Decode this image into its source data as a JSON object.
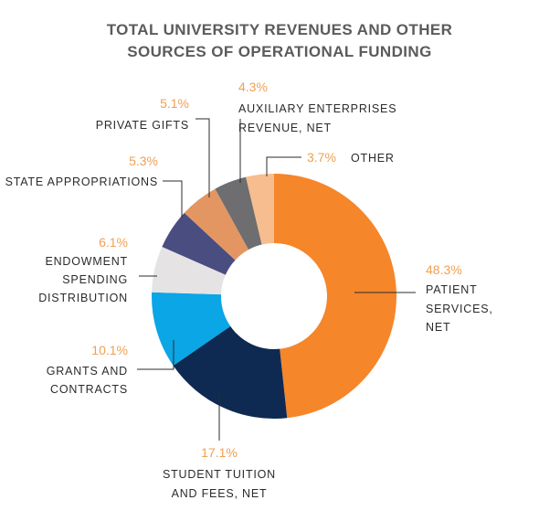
{
  "colors": {
    "percent": "#f0a052",
    "label": "#2b2b2b",
    "title": "#5b5b5b",
    "leader": "#2b2b2b"
  },
  "chart_data": {
    "type": "pie",
    "style": "donut",
    "title": [
      "TOTAL UNIVERSITY REVENUES AND OTHER",
      "SOURCES OF OPERATIONAL FUNDING"
    ],
    "slices": [
      {
        "label": [
          "PATIENT",
          "SERVICES,",
          "NET"
        ],
        "value": 48.3,
        "display": "48.3%",
        "color": "#f5862a"
      },
      {
        "label": [
          "STUDENT TUITION",
          "AND FEES, NET"
        ],
        "value": 17.1,
        "display": "17.1%",
        "color": "#0e2a52"
      },
      {
        "label": [
          "GRANTS AND",
          "CONTRACTS"
        ],
        "value": 10.1,
        "display": "10.1%",
        "color": "#0aa6e6"
      },
      {
        "label": [
          "ENDOWMENT",
          "SPENDING",
          "DISTRIBUTION"
        ],
        "value": 6.1,
        "display": "6.1%",
        "color": "#e6e3e4"
      },
      {
        "label": [
          "STATE APPROPRIATIONS"
        ],
        "value": 5.3,
        "display": "5.3%",
        "color": "#4a4d80"
      },
      {
        "label": [
          "PRIVATE GIFTS"
        ],
        "value": 5.1,
        "display": "5.1%",
        "color": "#e49662"
      },
      {
        "label": [
          "AUXILIARY ENTERPRISES",
          "REVENUE, NET"
        ],
        "value": 4.3,
        "display": "4.3%",
        "color": "#6e6e70"
      },
      {
        "label": [
          "OTHER"
        ],
        "value": 3.7,
        "display": "3.7%",
        "color": "#f7bd8e"
      }
    ]
  }
}
